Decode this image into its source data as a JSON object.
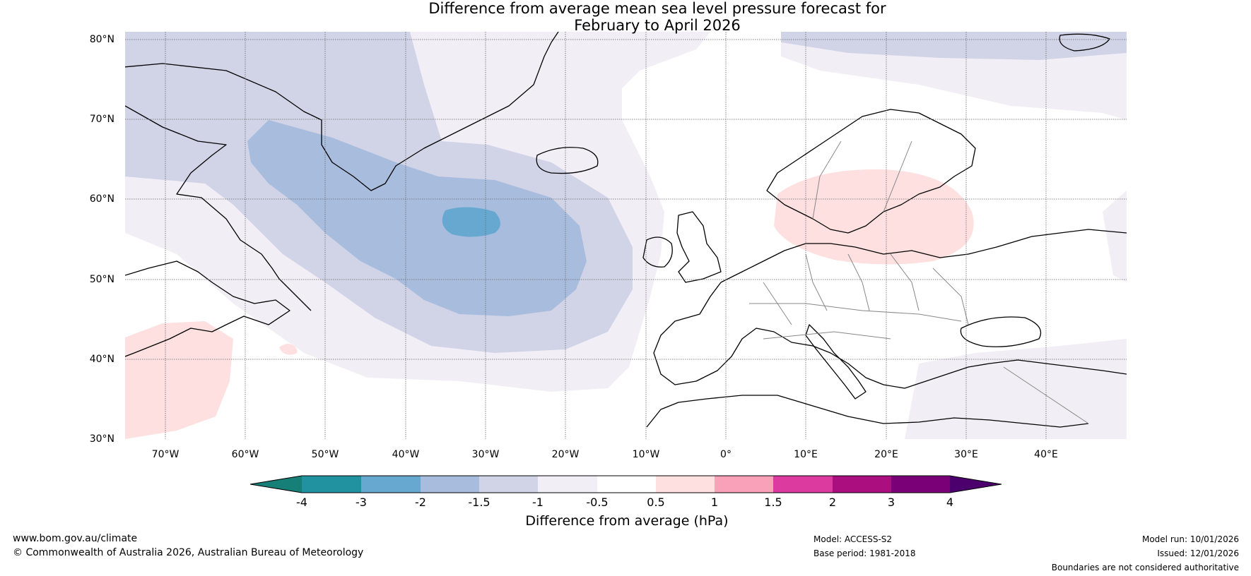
{
  "title": {
    "line1": "Difference from average mean sea level pressure forecast for",
    "line2": "February to April 2026"
  },
  "map": {
    "lat_labels": [
      "80°N",
      "70°N",
      "60°N",
      "50°N",
      "40°N",
      "30°N"
    ],
    "lon_labels": [
      "70°W",
      "60°W",
      "50°W",
      "40°W",
      "30°W",
      "20°W",
      "10°W",
      "0°",
      "10°E",
      "20°E",
      "30°E",
      "40°E"
    ],
    "extent": {
      "lon_min": -75,
      "lon_max": 50,
      "lat_min": 30,
      "lat_max": 81
    }
  },
  "colorbar": {
    "label": "Difference from average (hPa)",
    "ticks": [
      "-4",
      "-3",
      "-2",
      "-1.5",
      "-1",
      "-0.5",
      "0.5",
      "1",
      "1.5",
      "2",
      "3",
      "4"
    ],
    "colors": [
      "#167f78",
      "#2092a0",
      "#67a8d1",
      "#a8bcdd",
      "#d1d3e7",
      "#f2eef6",
      "#ffffff",
      "#fde0df",
      "#f8a1b8",
      "#dc3a9f",
      "#ab0e7f",
      "#790077",
      "#4b006d"
    ]
  },
  "footer": {
    "website": "www.bom.gov.au/climate",
    "copyright": "© Commonwealth of Australia 2026, Australian Bureau of Meteorology",
    "model": "Model: ACCESS-S2",
    "base_period": "Base period: 1981-2018",
    "model_run": "Model run: 10/01/2026",
    "issued": "Issued: 12/01/2026",
    "disclaimer": "Boundaries are not considered authoritative"
  }
}
